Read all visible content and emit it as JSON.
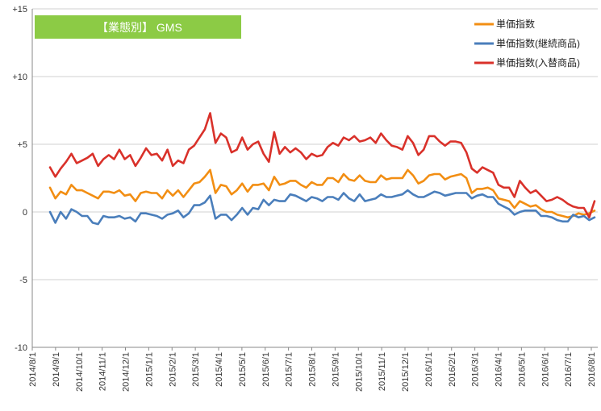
{
  "chart_data": {
    "type": "line",
    "title": "【業態別】 GMS",
    "xlabel": "",
    "ylabel": "",
    "ylim": [
      -10,
      15
    ],
    "y_ticks": [
      15,
      10,
      5,
      0,
      -5,
      -10
    ],
    "y_tick_labels": [
      "+15",
      "+10",
      "+5",
      "0",
      "-5",
      "-10"
    ],
    "x_ticks": [
      "2014/8/1",
      "2014/9/1",
      "2014/10/1",
      "2014/11/1",
      "2014/12/1",
      "2015/1/1",
      "2015/2/1",
      "2015/3/1",
      "2015/4/1",
      "2015/5/1",
      "2015/6/1",
      "2015/7/1",
      "2015/8/1",
      "2015/9/1",
      "2015/10/1",
      "2015/11/1",
      "2015/12/1",
      "2016/1/1",
      "2016/2/1",
      "2016/3/1",
      "2016/4/1",
      "2016/5/1",
      "2016/6/1",
      "2016/7/1",
      "2016/8/1"
    ],
    "grid": "horizontal",
    "legend": "top-right",
    "series": [
      {
        "name": "単価指数",
        "color": "#F28E13",
        "values": [
          1.8,
          1.0,
          1.5,
          1.3,
          2.0,
          1.6,
          1.6,
          1.4,
          1.2,
          1.0,
          1.5,
          1.5,
          1.4,
          1.6,
          1.2,
          1.3,
          0.8,
          1.4,
          1.5,
          1.4,
          1.4,
          1.0,
          1.6,
          1.2,
          1.6,
          1.1,
          1.6,
          2.1,
          2.2,
          2.6,
          3.1,
          1.4,
          2.0,
          1.9,
          1.3,
          1.6,
          2.1,
          1.5,
          2.0,
          2.0,
          2.1,
          1.6,
          2.6,
          2.0,
          2.1,
          2.3,
          2.3,
          2.0,
          1.8,
          2.2,
          2.0,
          2.0,
          2.5,
          2.5,
          2.2,
          2.8,
          2.4,
          2.3,
          2.7,
          2.3,
          2.2,
          2.2,
          2.7,
          2.4,
          2.5,
          2.5,
          2.5,
          3.1,
          2.7,
          2.1,
          2.3,
          2.7,
          2.8,
          2.8,
          2.4,
          2.6,
          2.7,
          2.8,
          2.5,
          1.4,
          1.7,
          1.7,
          1.8,
          1.6,
          1.0,
          0.9,
          0.8,
          0.3,
          0.8,
          0.6,
          0.4,
          0.5,
          0.2,
          0.0,
          0.0,
          -0.2,
          -0.3,
          -0.4,
          -0.3,
          -0.1,
          -0.2,
          -0.1,
          0.1
        ]
      },
      {
        "name": "単価指数(継続商品)",
        "color": "#4A7EBB",
        "values": [
          0.0,
          -0.8,
          0.0,
          -0.5,
          0.2,
          0.0,
          -0.3,
          -0.3,
          -0.8,
          -0.9,
          -0.3,
          -0.4,
          -0.4,
          -0.3,
          -0.5,
          -0.4,
          -0.7,
          -0.1,
          -0.1,
          -0.2,
          -0.3,
          -0.5,
          -0.2,
          -0.1,
          0.1,
          -0.4,
          -0.1,
          0.5,
          0.5,
          0.7,
          1.2,
          -0.5,
          -0.2,
          -0.2,
          -0.6,
          -0.2,
          0.3,
          -0.2,
          0.3,
          0.2,
          0.9,
          0.5,
          0.9,
          0.8,
          0.8,
          1.3,
          1.2,
          1.0,
          0.8,
          1.1,
          1.0,
          0.8,
          1.1,
          1.1,
          0.9,
          1.4,
          1.0,
          0.8,
          1.3,
          0.8,
          0.9,
          1.0,
          1.3,
          1.1,
          1.1,
          1.2,
          1.3,
          1.6,
          1.3,
          1.1,
          1.1,
          1.3,
          1.5,
          1.4,
          1.2,
          1.3,
          1.4,
          1.4,
          1.4,
          1.0,
          1.2,
          1.3,
          1.1,
          1.1,
          0.6,
          0.4,
          0.2,
          -0.2,
          0.0,
          0.1,
          0.1,
          0.1,
          -0.3,
          -0.3,
          -0.4,
          -0.6,
          -0.7,
          -0.7,
          -0.2,
          -0.4,
          -0.3,
          -0.6,
          -0.4
        ]
      },
      {
        "name": "単価指数(入替商品)",
        "color": "#D9312A",
        "values": [
          3.3,
          2.6,
          3.2,
          3.7,
          4.3,
          3.6,
          3.8,
          4.0,
          4.3,
          3.4,
          3.9,
          4.2,
          3.9,
          4.6,
          3.9,
          4.2,
          3.4,
          4.0,
          4.7,
          4.2,
          4.3,
          3.8,
          4.6,
          3.4,
          3.8,
          3.6,
          4.6,
          4.9,
          5.5,
          6.1,
          7.3,
          5.1,
          5.8,
          5.5,
          4.4,
          4.6,
          5.5,
          4.6,
          5.0,
          5.2,
          4.3,
          3.7,
          5.9,
          4.3,
          4.8,
          4.4,
          4.7,
          4.4,
          3.9,
          4.3,
          4.1,
          4.2,
          4.8,
          5.1,
          4.9,
          5.5,
          5.3,
          5.6,
          5.2,
          5.3,
          5.5,
          5.1,
          5.8,
          5.3,
          4.9,
          4.8,
          4.6,
          5.6,
          5.1,
          4.2,
          4.6,
          5.6,
          5.6,
          5.2,
          4.9,
          5.2,
          5.2,
          5.1,
          4.4,
          3.2,
          2.9,
          3.3,
          3.1,
          2.9,
          2.0,
          1.8,
          1.8,
          1.1,
          2.3,
          1.8,
          1.4,
          1.6,
          1.2,
          0.8,
          0.9,
          1.1,
          0.9,
          0.6,
          0.4,
          0.3,
          0.3,
          -0.4,
          0.8
        ]
      }
    ]
  }
}
